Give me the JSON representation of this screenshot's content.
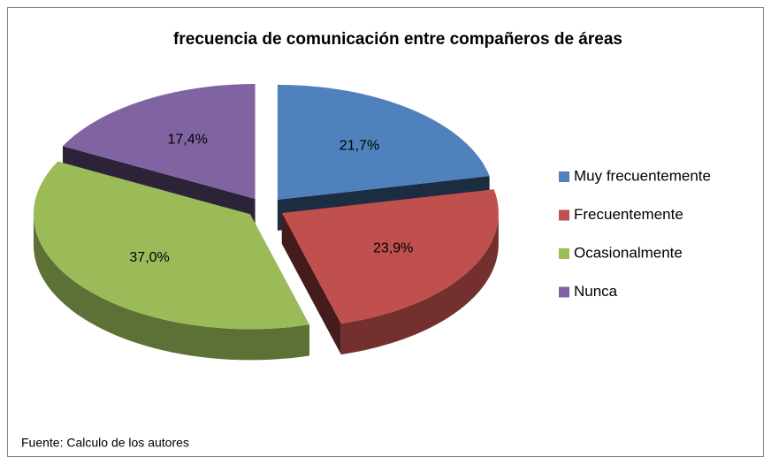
{
  "chart_data": {
    "type": "pie",
    "title": "frecuencia  de comunicación entre compañeros de áreas",
    "categories": [
      "Muy frecuentemente",
      "Frecuentemente",
      "Ocasionalmente",
      "Nunca"
    ],
    "values": [
      21.7,
      23.9,
      37.0,
      17.4
    ],
    "value_labels": [
      "21,7%",
      "23,9%",
      "37,0%",
      "17,4%"
    ],
    "colors": [
      "#4f81bd",
      "#c0504d",
      "#9bbb59",
      "#8064a2"
    ],
    "legend": "right",
    "note": "Fuente: Calculo de los autores"
  }
}
